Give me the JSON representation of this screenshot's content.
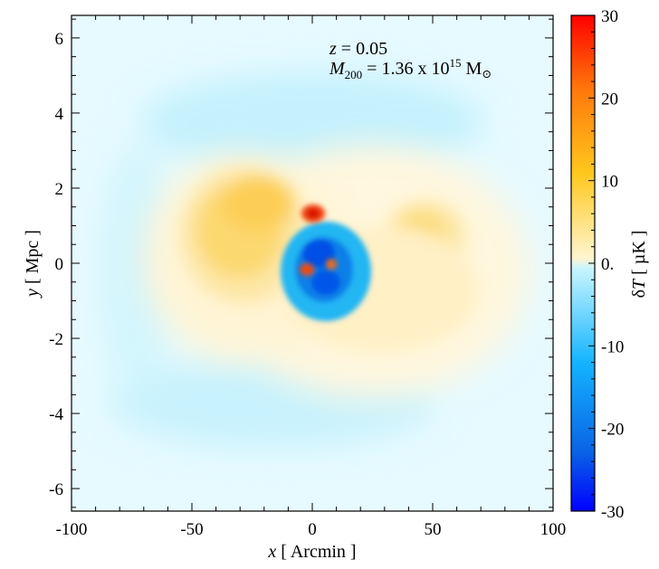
{
  "chart_data": {
    "type": "heatmap",
    "annotation": {
      "line1": {
        "var": "z",
        "rest": " = 0.05"
      },
      "line2": {
        "var": "M",
        "sub": "200",
        "rest": " = 1.36 x 10",
        "sup": "15",
        "unit": " M",
        "symbol": "⊙"
      }
    },
    "xaxis": {
      "label_var": "x",
      "label_unit": " [ Arcmin ]",
      "range": [
        -100,
        100
      ],
      "ticks": [
        -100,
        -50,
        0,
        50,
        100
      ]
    },
    "yaxis": {
      "label_var": "y",
      "label_unit": " [ Mpc ]",
      "range": [
        -6.6,
        6.6
      ],
      "ticks": [
        -6,
        -4,
        -2,
        0,
        2,
        4,
        6
      ]
    },
    "colorbar": {
      "label_prefix": "δ",
      "label_var": "T",
      "label_unit": " [ µK ]",
      "range": [
        -30,
        30
      ],
      "ticks": [
        {
          "value": -30,
          "label": "-30"
        },
        {
          "value": -20,
          "label": "-20"
        },
        {
          "value": -10,
          "label": "-10"
        },
        {
          "value": 0,
          "label": "0."
        },
        {
          "value": 10,
          "label": "10"
        },
        {
          "value": 20,
          "label": "20"
        },
        {
          "value": 30,
          "label": "30"
        }
      ],
      "colors": [
        "#0000ff",
        "#0a64e6",
        "#14b4ff",
        "#c8f5ff",
        "#fff5d0",
        "#ffc81e",
        "#ff780a",
        "#ff0000"
      ]
    },
    "features": [
      {
        "name": "positive lobe west",
        "x": -30,
        "y": 0.5,
        "peak_uK": 10
      },
      {
        "name": "positive lobe east",
        "x": 45,
        "y": 0.5,
        "peak_uK": 8
      },
      {
        "name": "hot spot north",
        "x": 0,
        "y": 1.4,
        "peak_uK": 28
      },
      {
        "name": "cold core",
        "x": 5,
        "y": -0.2,
        "peak_uK": -25
      },
      {
        "name": "hot spot center-left",
        "x": -3,
        "y": -0.1,
        "peak_uK": 24
      },
      {
        "name": "hot spot center-right",
        "x": 7,
        "y": 0.1,
        "peak_uK": 20
      },
      {
        "name": "faint negative ring",
        "x": 0,
        "y": 4.5,
        "peak_uK": -3
      }
    ]
  }
}
